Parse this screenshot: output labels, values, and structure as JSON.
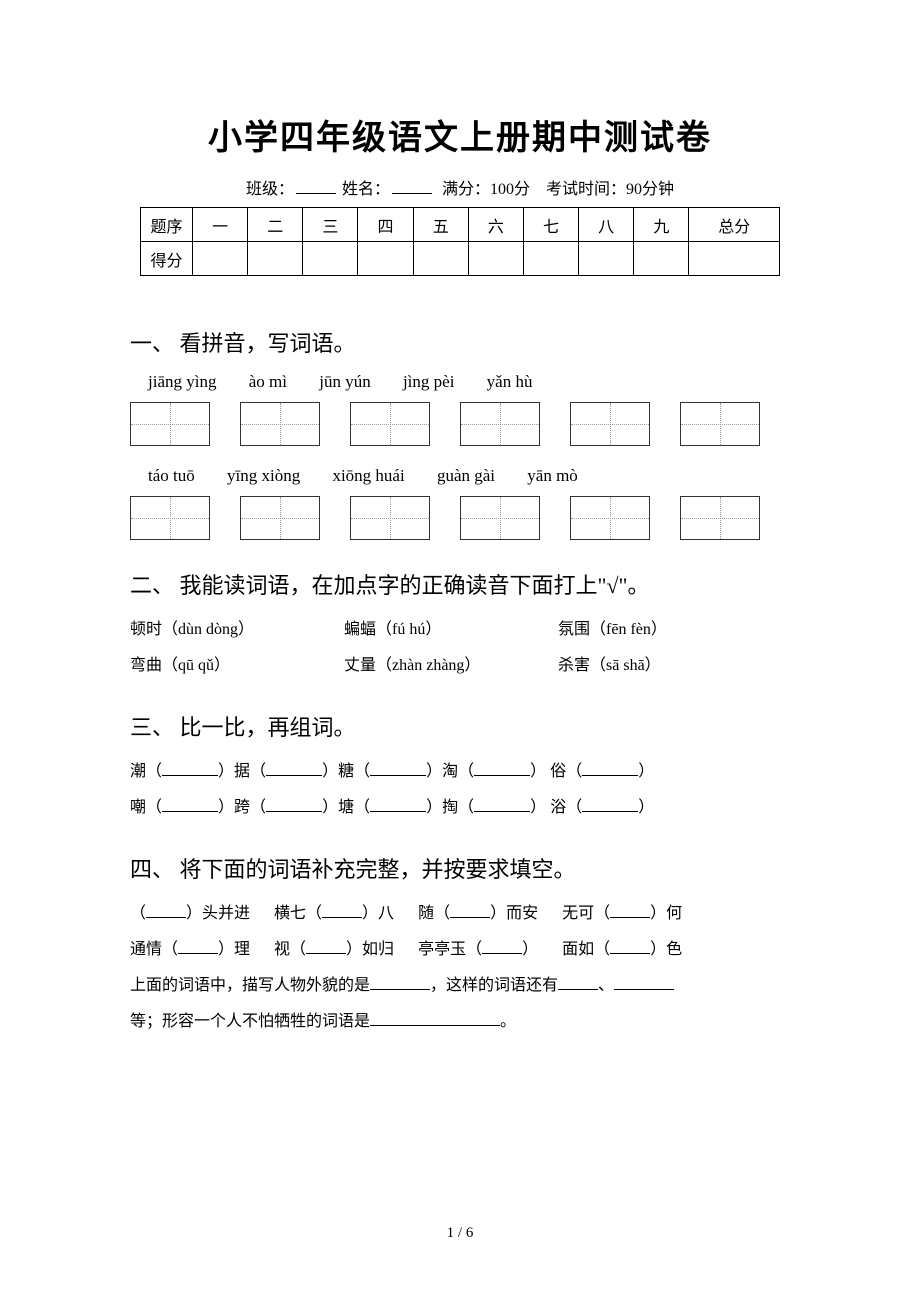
{
  "title": "小学四年级语文上册期中测试卷",
  "meta": {
    "class_label": "班级：",
    "name_label": "姓名：",
    "full_score": "满分：100分",
    "duration": "考试时间：90分钟"
  },
  "score_table": {
    "row1_label": "题序",
    "cols": [
      "一",
      "二",
      "三",
      "四",
      "五",
      "六",
      "七",
      "八",
      "九",
      "总分"
    ],
    "row2_label": "得分"
  },
  "section1": {
    "heading": "一、 看拼音，写词语。",
    "row1": [
      "jiāng yìng",
      "ào mì",
      "jūn yún",
      "jìng pèi",
      "yǎn hù"
    ],
    "row2": [
      "táo tuō",
      "yīng xiòng",
      "xiōng huái",
      "guàn gài",
      "yān mò"
    ]
  },
  "section2": {
    "heading": "二、 我能读词语，在加点字的正确读音下面打上\"√\"。",
    "items": [
      {
        "word": "顿时",
        "choices": "（dùn dòng）"
      },
      {
        "word": "蝙蝠",
        "choices": "（fú hú）"
      },
      {
        "word": "氛围",
        "choices": "（fēn fèn）"
      },
      {
        "word": "弯曲",
        "choices": "（qū qǔ）"
      },
      {
        "word": "丈量",
        "choices": "（zhàn zhàng）"
      },
      {
        "word": "杀害",
        "choices": "（sā shā）"
      }
    ]
  },
  "section3": {
    "heading": "三、 比一比，再组词。",
    "row1": [
      "潮",
      "据",
      "糖",
      "淘",
      "俗"
    ],
    "row2": [
      "嘲",
      "跨",
      "塘",
      "掏",
      "浴"
    ]
  },
  "section4": {
    "heading": "四、 将下面的词语补充完整，并按要求填空。",
    "line1": [
      {
        "pre": "（",
        "post": "）头并进"
      },
      {
        "pre": "横七（",
        "post": "）八"
      },
      {
        "pre": "随（",
        "post": "）而安"
      },
      {
        "pre": "无可（",
        "post": "）何"
      }
    ],
    "line2": [
      {
        "pre": "通情（",
        "post": "）理"
      },
      {
        "pre": "视（",
        "post": "）如归"
      },
      {
        "pre": "亭亭玉（",
        "post": "）"
      },
      {
        "pre": "面如（",
        "post": "）色"
      }
    ],
    "follow1_a": "上面的词语中，描写人物外貌的是",
    "follow1_b": "，这样的词语还有",
    "follow1_c": "、",
    "follow2_a": "等；形容一个人不怕牺牲的词语是",
    "follow2_b": "。"
  },
  "pager": "1 / 6"
}
